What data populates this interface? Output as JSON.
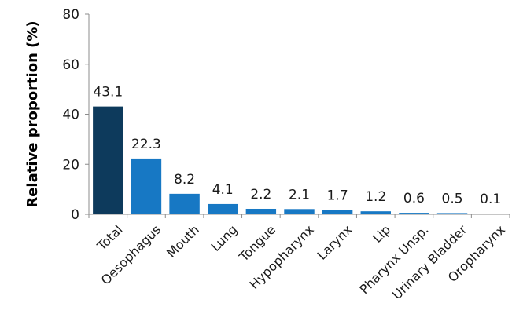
{
  "chart_data": {
    "type": "bar",
    "title": "",
    "xlabel": "",
    "ylabel": "Relative proportion (%)",
    "ylim": [
      0,
      80
    ],
    "yticks": [
      0,
      20,
      40,
      60,
      80
    ],
    "grid": false,
    "categories": [
      "Total",
      "Oesophagus",
      "Mouth",
      "Lung",
      "Tongue",
      "Hypopharynx",
      "Larynx",
      "Lip",
      "Pharynx Unsp.",
      "Urinary Bladder",
      "Oropharynx"
    ],
    "values": [
      43.1,
      22.3,
      8.2,
      4.1,
      2.2,
      2.1,
      1.7,
      1.2,
      0.6,
      0.5,
      0.1
    ],
    "value_labels": [
      "43.1",
      "22.3",
      "8.2",
      "4.1",
      "2.2",
      "2.1",
      "1.7",
      "1.2",
      "0.6",
      "0.5",
      "0.1"
    ],
    "colors": {
      "highlight": "#0d3a5c",
      "default": "#1778c4"
    }
  }
}
